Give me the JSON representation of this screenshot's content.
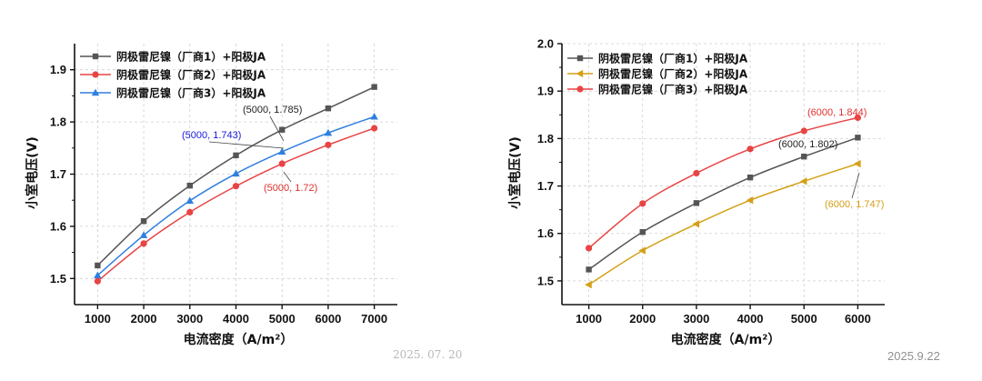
{
  "chart_data": [
    {
      "type": "line",
      "xlabel": "电流密度（A/m²）",
      "ylabel": "小室电压(V)",
      "xlim": [
        500,
        7500
      ],
      "ylim": [
        1.45,
        1.95
      ],
      "xticks": [
        1000,
        2000,
        3000,
        4000,
        5000,
        6000,
        7000
      ],
      "yticks": [
        1.5,
        1.6,
        1.7,
        1.8,
        1.9
      ],
      "x": [
        1000,
        2000,
        3000,
        4000,
        5000,
        6000,
        7000
      ],
      "series": [
        {
          "name": "阴极雷尼镍（厂商1）+阳极JA",
          "color": "#555555",
          "marker": "square",
          "values": [
            1.525,
            1.61,
            1.678,
            1.736,
            1.785,
            1.826,
            1.867
          ]
        },
        {
          "name": "阴极雷尼镍（厂商2）+阳极JA",
          "color": "#e84444",
          "marker": "circle",
          "values": [
            1.495,
            1.567,
            1.627,
            1.677,
            1.72,
            1.756,
            1.788
          ]
        },
        {
          "name": "阴极雷尼镍（厂商3）+阳极JA",
          "color": "#2f7fe0",
          "marker": "triangle-up",
          "values": [
            1.506,
            1.583,
            1.649,
            1.701,
            1.743,
            1.779,
            1.81
          ]
        }
      ],
      "annotations": [
        {
          "text": "(5000, 1.785)",
          "color": "#222222"
        },
        {
          "text": "(5000, 1.743)",
          "color": "#1a1adf"
        },
        {
          "text": "(5000, 1.72)",
          "color": "#e03030"
        }
      ]
    },
    {
      "type": "line",
      "xlabel": "电流密度（A/m²）",
      "ylabel": "小室电压(V)",
      "xlim": [
        500,
        6500
      ],
      "ylim": [
        1.45,
        2.0
      ],
      "xticks": [
        1000,
        2000,
        3000,
        4000,
        5000,
        6000
      ],
      "yticks": [
        1.5,
        1.6,
        1.7,
        1.8,
        1.9,
        2.0
      ],
      "x": [
        1000,
        2000,
        3000,
        4000,
        5000,
        6000
      ],
      "series": [
        {
          "name": "阴极雷尼镍（厂商1）+阳极JA",
          "color": "#555555",
          "marker": "square",
          "values": [
            1.524,
            1.603,
            1.664,
            1.718,
            1.762,
            1.802
          ]
        },
        {
          "name": "阴极雷尼镍（厂商2）+阳极JA",
          "color": "#d4a017",
          "marker": "triangle-left",
          "values": [
            1.492,
            1.564,
            1.62,
            1.67,
            1.71,
            1.747
          ]
        },
        {
          "name": "阴极雷尼镍（厂商3）+阳极JA",
          "color": "#e84444",
          "marker": "circle",
          "values": [
            1.569,
            1.663,
            1.727,
            1.778,
            1.816,
            1.844
          ]
        }
      ],
      "annotations": [
        {
          "text": "(6000, 1.844)",
          "color": "#e03030"
        },
        {
          "text": "(6000, 1.802)",
          "color": "#222222"
        },
        {
          "text": "(6000, 1.747)",
          "color": "#d4a017"
        }
      ]
    }
  ],
  "stamps": {
    "left_date": "2025. 07. 20",
    "right_date": "2025.9.22"
  }
}
